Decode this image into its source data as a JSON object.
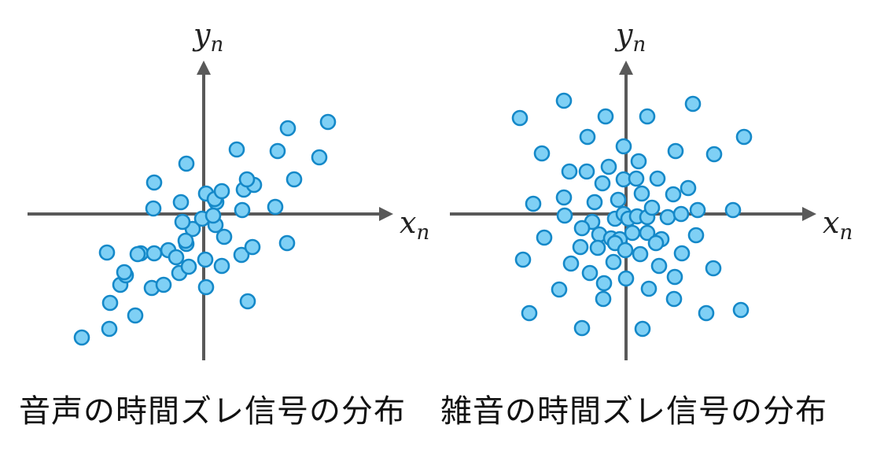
{
  "panels": [
    {
      "id": "speech",
      "caption": "音声の時間ズレ信号の分布",
      "x_label": "x",
      "x_sub": "n",
      "y_label": "y",
      "y_sub": "n",
      "points": [
        [
          -155,
          -157
        ],
        [
          -120,
          -146
        ],
        [
          -87,
          -129
        ],
        [
          -119,
          -113
        ],
        [
          -106,
          -90
        ],
        [
          -66,
          -94
        ],
        [
          -99,
          -78
        ],
        [
          -51,
          -90
        ],
        [
          -80,
          -50
        ],
        [
          -31,
          -75
        ],
        [
          -45,
          -46
        ],
        [
          -63,
          -50
        ],
        [
          -123,
          -49
        ],
        [
          -101,
          -74
        ],
        [
          -84,
          -51
        ],
        [
          -22,
          -38
        ],
        [
          -35,
          -55
        ],
        [
          -19,
          -67
        ],
        [
          3,
          -93
        ],
        [
          2,
          -58
        ],
        [
          23,
          -66
        ],
        [
          48,
          -52
        ],
        [
          56,
          -111
        ],
        [
          62,
          -42
        ],
        [
          106,
          -37
        ],
        [
          26,
          -29
        ],
        [
          -14,
          -19
        ],
        [
          -27,
          -10
        ],
        [
          -2,
          -6
        ],
        [
          15,
          -14
        ],
        [
          49,
          5
        ],
        [
          91,
          9
        ],
        [
          16,
          15
        ],
        [
          -64,
          7
        ],
        [
          -29,
          15
        ],
        [
          3,
          26
        ],
        [
          14,
          19
        ],
        [
          23,
          29
        ],
        [
          51,
          31
        ],
        [
          64,
          37
        ],
        [
          55,
          44
        ],
        [
          115,
          44
        ],
        [
          42,
          82
        ],
        [
          -22,
          64
        ],
        [
          -63,
          40
        ],
        [
          94,
          80
        ],
        [
          107,
          109
        ],
        [
          147,
          72
        ],
        [
          158,
          117
        ],
        [
          -23,
          -34
        ],
        [
          12,
          -2
        ]
      ]
    },
    {
      "id": "noise",
      "caption": "雑音の時間ズレ信号の分布",
      "x_label": "x",
      "x_sub": "n",
      "y_label": "y",
      "y_sub": "n",
      "points": [
        [
          -135,
          122
        ],
        [
          -79,
          144
        ],
        [
          -26,
          124
        ],
        [
          27,
          124
        ],
        [
          85,
          140
        ],
        [
          -107,
          77
        ],
        [
          -49,
          98
        ],
        [
          -3,
          86
        ],
        [
          63,
          80
        ],
        [
          112,
          76
        ],
        [
          150,
          98
        ],
        [
          -72,
          54
        ],
        [
          -50,
          54
        ],
        [
          -22,
          60
        ],
        [
          16,
          67
        ],
        [
          -30,
          39
        ],
        [
          -3,
          44
        ],
        [
          13,
          45
        ],
        [
          40,
          45
        ],
        [
          -79,
          21
        ],
        [
          -40,
          15
        ],
        [
          -10,
          18
        ],
        [
          20,
          26
        ],
        [
          60,
          25
        ],
        [
          79,
          33
        ],
        [
          -118,
          13
        ],
        [
          -43,
          -10
        ],
        [
          -14,
          -6
        ],
        [
          -3,
          0
        ],
        [
          3,
          -6
        ],
        [
          14,
          -3
        ],
        [
          27,
          -4
        ],
        [
          33,
          8
        ],
        [
          53,
          -4
        ],
        [
          70,
          0
        ],
        [
          91,
          5
        ],
        [
          136,
          5
        ],
        [
          -78,
          -2
        ],
        [
          -56,
          -18
        ],
        [
          -34,
          -26
        ],
        [
          -19,
          -31
        ],
        [
          -8,
          -32
        ],
        [
          8,
          -24
        ],
        [
          27,
          -24
        ],
        [
          45,
          -32
        ],
        [
          -104,
          -30
        ],
        [
          -58,
          -42
        ],
        [
          -36,
          -43
        ],
        [
          -14,
          -37
        ],
        [
          -1,
          -46
        ],
        [
          18,
          -51
        ],
        [
          38,
          -37
        ],
        [
          89,
          -27
        ],
        [
          -131,
          -58
        ],
        [
          -70,
          -63
        ],
        [
          -16,
          -61
        ],
        [
          42,
          -66
        ],
        [
          71,
          -50
        ],
        [
          -46,
          -75
        ],
        [
          -28,
          -88
        ],
        [
          -85,
          -96
        ],
        [
          29,
          -95
        ],
        [
          62,
          -80
        ],
        [
          111,
          -69
        ],
        [
          -29,
          -108
        ],
        [
          61,
          -108
        ],
        [
          -123,
          -126
        ],
        [
          -56,
          -145
        ],
        [
          21,
          -146
        ],
        [
          102,
          -126
        ],
        [
          146,
          -122
        ],
        [
          0,
          -82
        ]
      ]
    }
  ]
}
